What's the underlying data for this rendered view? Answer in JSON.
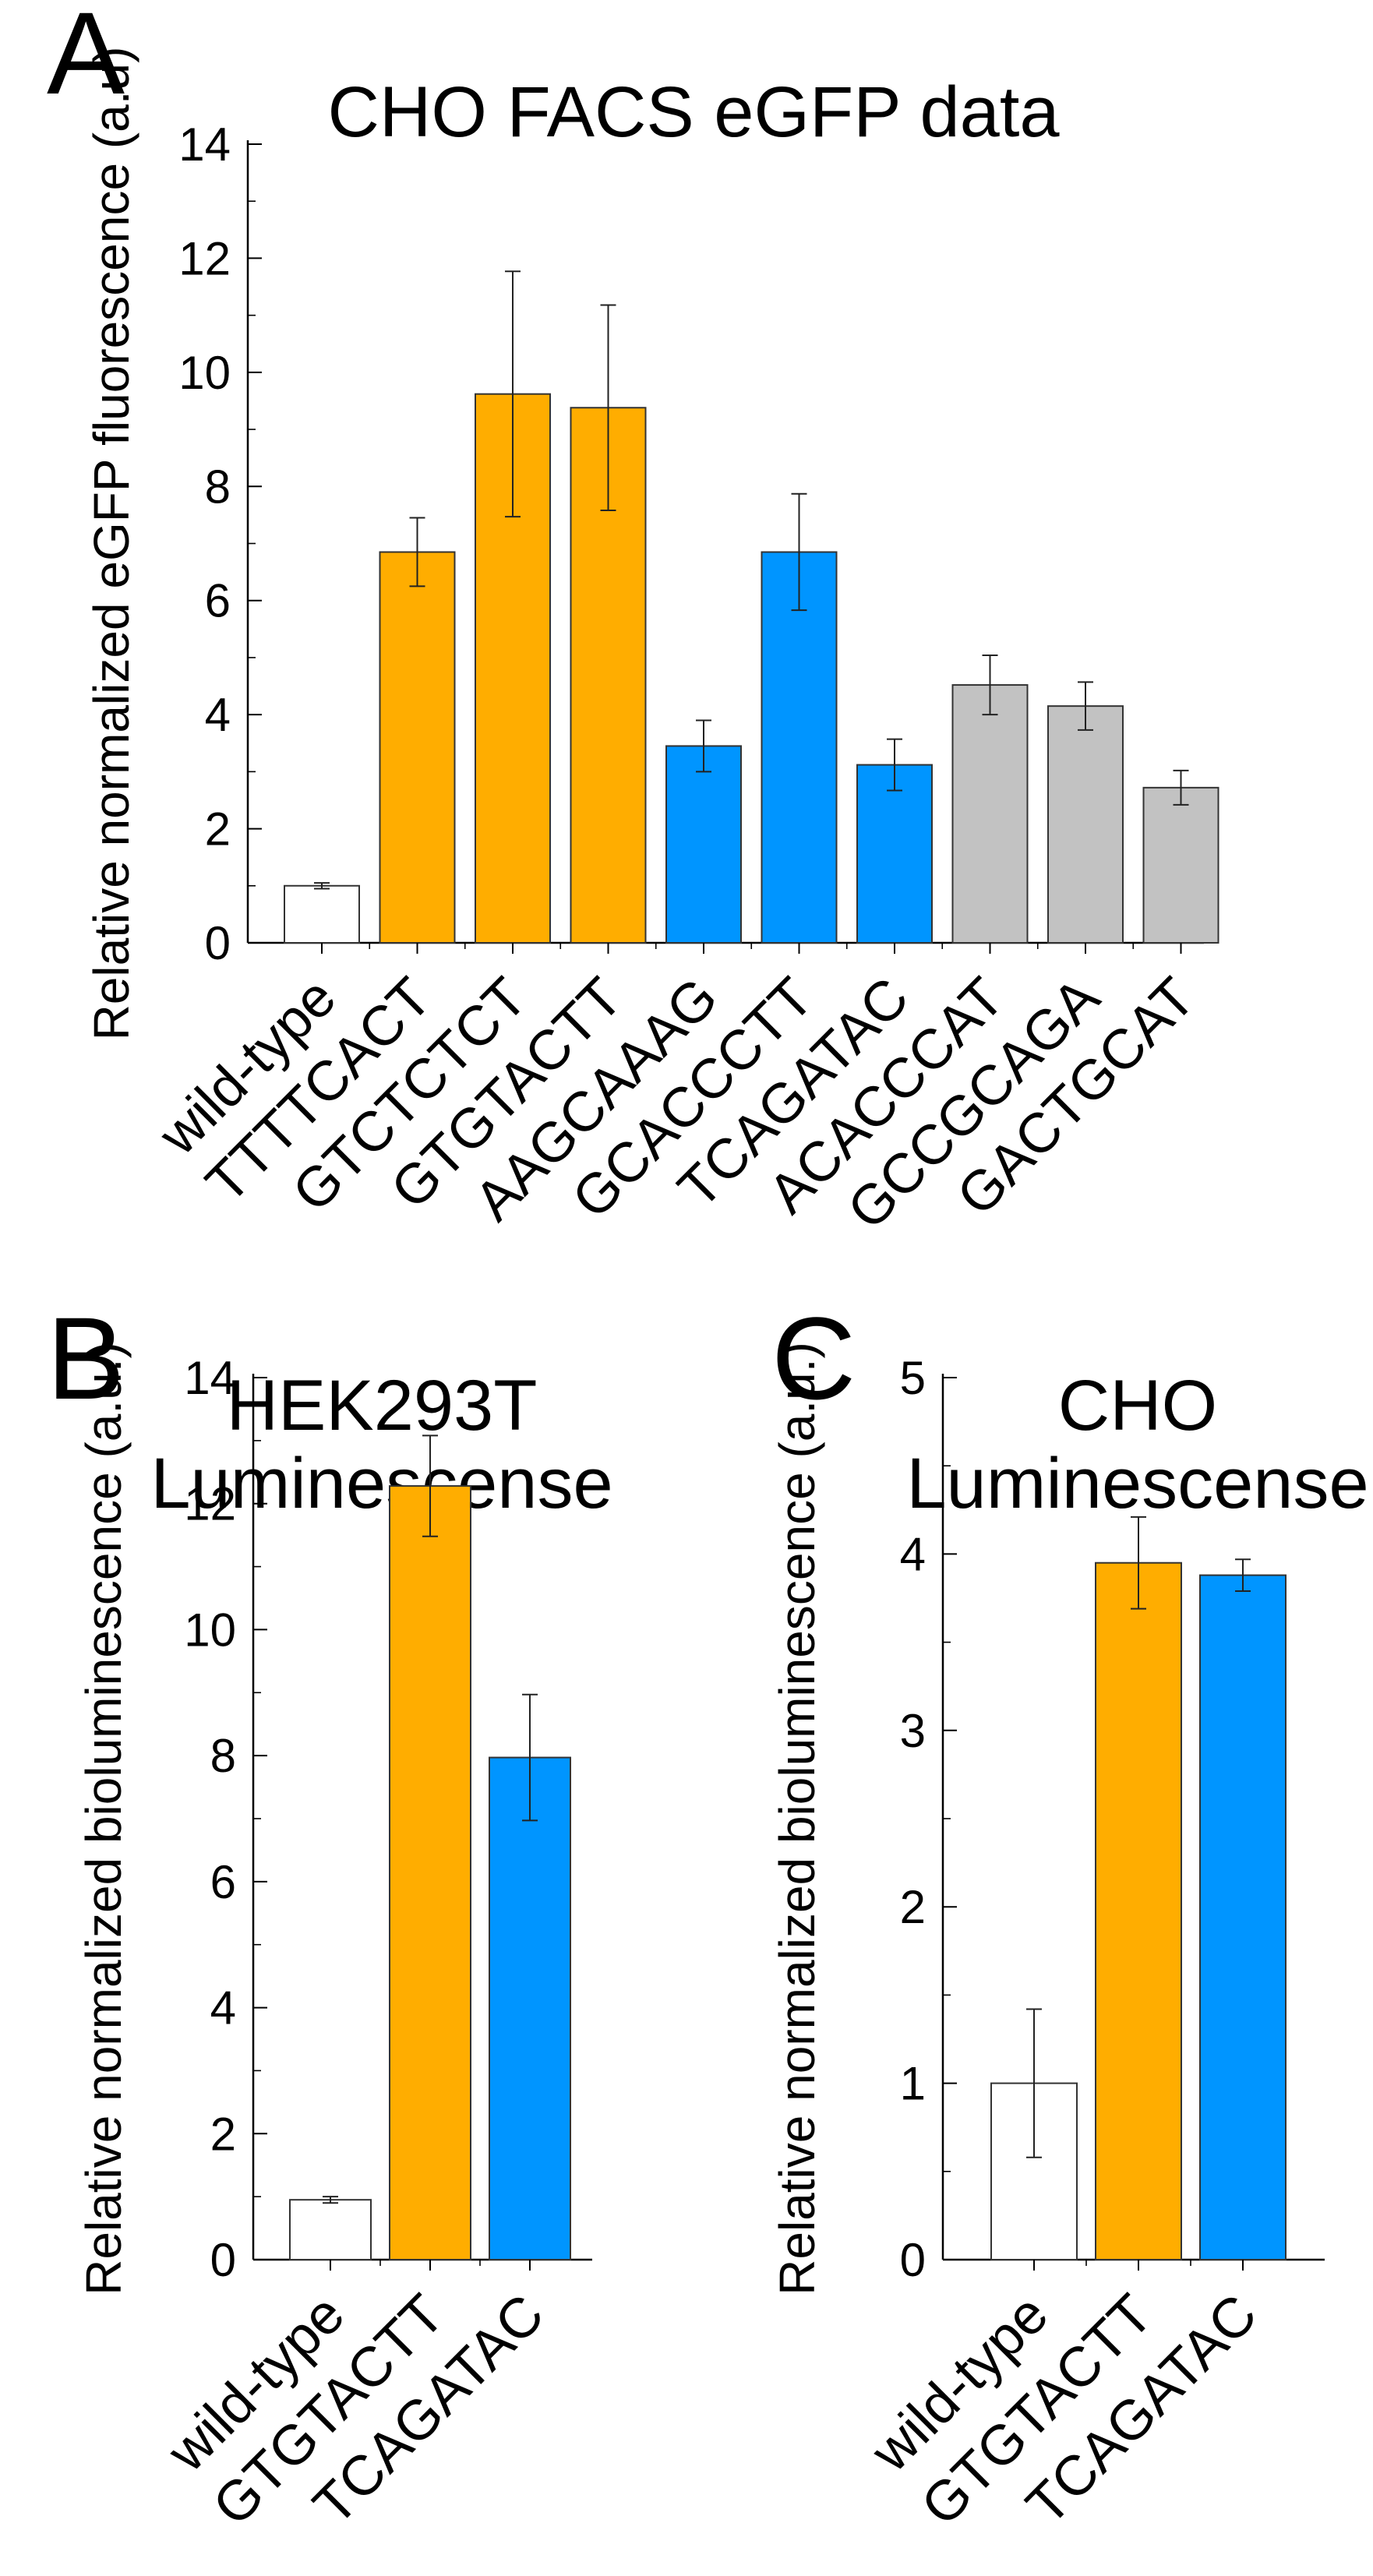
{
  "colors": {
    "wild_type": "#ffffff",
    "orange": "#ffad00",
    "blue": "#0095ff",
    "gray": "#c2c2c2",
    "edge": "#333333",
    "errorbar": "#222222"
  },
  "chart_data": [
    {
      "panel": "A",
      "type": "bar",
      "title": "CHO FACS eGFP data",
      "ylabel": "Relative normalized eGFP fluorescence (a.u)",
      "xlabel": "",
      "ylim": [
        0,
        14
      ],
      "yticks": [
        0,
        2,
        4,
        6,
        8,
        10,
        12,
        14
      ],
      "categories": [
        "wild-type",
        "TTTTCACT",
        "GTCTCTCT",
        "GTGTACTT",
        "AAGCAAAG",
        "GCACCCTT",
        "TCAGATAC",
        "ACACCCAT",
        "GCCGCAGA",
        "GACTGCAT"
      ],
      "values": [
        1.0,
        6.85,
        9.62,
        9.38,
        3.45,
        6.85,
        3.12,
        4.52,
        4.15,
        2.72
      ],
      "errors": [
        0.05,
        0.6,
        2.15,
        1.8,
        0.45,
        1.02,
        0.45,
        0.52,
        0.42,
        0.3
      ],
      "color_keys": [
        "wild_type",
        "orange",
        "orange",
        "orange",
        "blue",
        "blue",
        "blue",
        "gray",
        "gray",
        "gray"
      ]
    },
    {
      "panel": "B",
      "type": "bar",
      "title": [
        "HEK293T",
        "Luminescense"
      ],
      "ylabel": "Relative normalized bioluminescence (a.u.)",
      "xlabel": "",
      "ylim": [
        0,
        14
      ],
      "yticks": [
        0,
        2,
        4,
        6,
        8,
        10,
        12,
        14
      ],
      "categories": [
        "wild-type",
        "GTGTACTT",
        "TCAGATAC"
      ],
      "values": [
        0.95,
        12.28,
        7.97
      ],
      "errors": [
        0.05,
        0.8,
        1.0
      ],
      "color_keys": [
        "wild_type",
        "orange",
        "blue"
      ]
    },
    {
      "panel": "C",
      "type": "bar",
      "title": [
        "CHO",
        "Luminescense"
      ],
      "ylabel": "Relative normalized bioluminescence (a.u.)",
      "xlabel": "",
      "ylim": [
        0,
        5
      ],
      "yticks": [
        0,
        1,
        2,
        3,
        4,
        5
      ],
      "categories": [
        "wild-type",
        "GTGTACTT",
        "TCAGATAC"
      ],
      "values": [
        1.0,
        3.95,
        3.88
      ],
      "errors": [
        0.42,
        0.26,
        0.09
      ],
      "color_keys": [
        "wild_type",
        "orange",
        "blue"
      ]
    }
  ]
}
